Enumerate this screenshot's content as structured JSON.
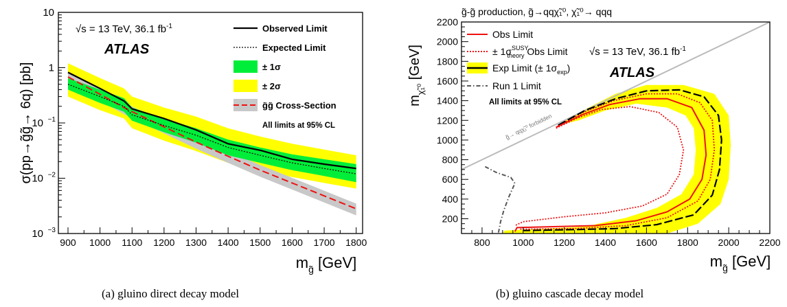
{
  "panel_a": {
    "caption": "(a) gluino direct decay model",
    "energy_label": "√s = 13 TeV, 36.1 fb",
    "energy_sup": "-1",
    "experiment": "ATLAS",
    "all_limits": "All limits at 95% CL",
    "legend": {
      "observed": "Observed Limit",
      "expected": "Expected Limit",
      "one_sigma": "± 1σ",
      "two_sigma": "± 2σ",
      "xsec": "g̃g̃ Cross-Section"
    }
  },
  "panel_b": {
    "caption": "(b) gluino cascade decay model",
    "title": "g̃-g̃ production, g̃→qqχ̃₁⁰, χ̃₁⁰→ qqq",
    "energy_label": "√s = 13 TeV, 36.1 fb",
    "energy_sup": "-1",
    "experiment": "ATLAS",
    "all_limits": "All limits at 95% CL",
    "forbidden": "g̃→ qqχ̃₁⁰ forbidden",
    "legend": {
      "obs": "Obs Limit",
      "theory_prefix": "± 1σ",
      "theory_sup": "SUSY",
      "theory_sub": "theory",
      "theory_suffix": " Obs Limit",
      "exp": "Exp Limit (± 1σ",
      "exp_sub": "exp",
      "exp_close": ")",
      "run1": "Run 1 Limit"
    }
  },
  "colors": {
    "green_band": "#00ee3a",
    "yellow_band": "#ffff00",
    "red": "#ee1111",
    "grey_band": "#c8c8c8",
    "diagonal": "#bbbbbb",
    "run1": "#555555"
  },
  "chart_data": [
    {
      "type": "line",
      "ylog": true,
      "xlabel": "m_g̃ [GeV]",
      "ylabel": "σ(pp→g̃g̃→ 6q) [pb]",
      "xlim": [
        870,
        1820
      ],
      "ylim": [
        0.001,
        10
      ],
      "xticks": [
        900,
        1000,
        1100,
        1200,
        1300,
        1400,
        1500,
        1600,
        1700,
        1800
      ],
      "yticks": [
        {
          "v": 0.001,
          "base": "10",
          "exp": "−3"
        },
        {
          "v": 0.01,
          "base": "10",
          "exp": "−2"
        },
        {
          "v": 0.1,
          "base": "10",
          "exp": "−1"
        },
        {
          "v": 1,
          "base": "1",
          "exp": ""
        },
        {
          "v": 10,
          "base": "10",
          "exp": ""
        }
      ],
      "x": [
        900,
        1000,
        1075,
        1100,
        1200,
        1300,
        1400,
        1500,
        1600,
        1700,
        1800
      ],
      "series": [
        {
          "name": "Observed Limit",
          "values": [
            0.82,
            0.42,
            0.25,
            0.18,
            0.12,
            0.075,
            0.042,
            0.032,
            0.022,
            0.018,
            0.015
          ]
        },
        {
          "name": "Expected Limit",
          "values": [
            0.5,
            0.3,
            0.2,
            0.14,
            0.09,
            0.06,
            0.036,
            0.026,
            0.019,
            0.015,
            0.012
          ]
        },
        {
          "name": "± 1σ",
          "lower": [
            0.4,
            0.23,
            0.16,
            0.11,
            0.068,
            0.044,
            0.026,
            0.019,
            0.014,
            0.011,
            0.0085
          ],
          "upper": [
            0.65,
            0.4,
            0.28,
            0.19,
            0.12,
            0.08,
            0.05,
            0.036,
            0.027,
            0.022,
            0.018
          ]
        },
        {
          "name": "± 2σ",
          "lower": [
            0.3,
            0.17,
            0.12,
            0.08,
            0.048,
            0.031,
            0.019,
            0.014,
            0.0105,
            0.0082,
            0.0065
          ],
          "upper": [
            1.2,
            0.65,
            0.42,
            0.3,
            0.19,
            0.13,
            0.08,
            0.057,
            0.042,
            0.033,
            0.026
          ]
        },
        {
          "name": "g̃g̃ Cross-Section",
          "values": [
            0.68,
            0.33,
            0.19,
            0.16,
            0.085,
            0.045,
            0.025,
            0.014,
            0.0082,
            0.0048,
            0.0028
          ],
          "band_frac": 0.24
        }
      ]
    },
    {
      "type": "line",
      "xlabel": "m_g̃ [GeV]",
      "ylabel": "m_χ̃₁⁰ [GeV]",
      "xlim": [
        700,
        2200
      ],
      "ylim": [
        50,
        2200
      ],
      "xticks": [
        800,
        1000,
        1200,
        1400,
        1600,
        1800,
        2000,
        2200
      ],
      "yticks": [
        200,
        400,
        600,
        800,
        1000,
        1200,
        1400,
        1600,
        1800,
        2000,
        2200
      ],
      "diagonal": [
        [
          700,
          700
        ],
        [
          2200,
          2200
        ]
      ],
      "series": [
        {
          "name": "Exp Limit ± 1σ band outer",
          "points": [
            [
              1170,
              1150
            ],
            [
              1300,
              1310
            ],
            [
              1450,
              1470
            ],
            [
              1600,
              1560
            ],
            [
              1780,
              1560
            ],
            [
              1930,
              1470
            ],
            [
              2000,
              1250
            ],
            [
              2010,
              950
            ],
            [
              2000,
              600
            ],
            [
              1960,
              350
            ],
            [
              1850,
              150
            ],
            [
              1700,
              50
            ],
            [
              900,
              50
            ],
            [
              910,
              80
            ],
            [
              1300,
              120
            ],
            [
              1500,
              210
            ],
            [
              1650,
              310
            ],
            [
              1770,
              450
            ],
            [
              1830,
              650
            ],
            [
              1840,
              900
            ],
            [
              1830,
              1120
            ],
            [
              1790,
              1250
            ],
            [
              1700,
              1330
            ],
            [
              1550,
              1370
            ],
            [
              1400,
              1300
            ],
            [
              1270,
              1200
            ],
            [
              1170,
              1150
            ]
          ]
        },
        {
          "name": "Exp Limit (± 1σexp)",
          "points": [
            [
              1170,
              1150
            ],
            [
              1300,
              1300
            ],
            [
              1450,
              1420
            ],
            [
              1600,
              1500
            ],
            [
              1760,
              1510
            ],
            [
              1880,
              1440
            ],
            [
              1950,
              1250
            ],
            [
              1965,
              1000
            ],
            [
              1955,
              700
            ],
            [
              1920,
              440
            ],
            [
              1830,
              240
            ],
            [
              1650,
              140
            ],
            [
              1450,
              100
            ],
            [
              1250,
              90
            ],
            [
              1000,
              80
            ]
          ]
        },
        {
          "name": "Obs Limit",
          "points": [
            [
              1160,
              1130
            ],
            [
              1290,
              1260
            ],
            [
              1420,
              1360
            ],
            [
              1570,
              1420
            ],
            [
              1700,
              1420
            ],
            [
              1820,
              1330
            ],
            [
              1880,
              1100
            ],
            [
              1890,
              850
            ],
            [
              1870,
              600
            ],
            [
              1810,
              400
            ],
            [
              1700,
              270
            ],
            [
              1550,
              180
            ],
            [
              1350,
              130
            ],
            [
              1150,
              120
            ],
            [
              970,
              110
            ],
            [
              960,
              70
            ]
          ]
        },
        {
          "name": "± 1σtheory SUSY Obs Limit (upper)",
          "points": [
            [
              1170,
              1150
            ],
            [
              1300,
              1290
            ],
            [
              1440,
              1400
            ],
            [
              1600,
              1470
            ],
            [
              1750,
              1470
            ],
            [
              1860,
              1380
            ],
            [
              1920,
              1200
            ],
            [
              1930,
              900
            ],
            [
              1910,
              600
            ],
            [
              1850,
              380
            ],
            [
              1700,
              210
            ],
            [
              1500,
              130
            ],
            [
              1250,
              100
            ],
            [
              980,
              95
            ]
          ]
        },
        {
          "name": "± 1σtheory SUSY Obs Limit (lower)",
          "points": [
            [
              1160,
              1120
            ],
            [
              1260,
              1220
            ],
            [
              1380,
              1310
            ],
            [
              1520,
              1340
            ],
            [
              1660,
              1280
            ],
            [
              1750,
              1130
            ],
            [
              1780,
              900
            ],
            [
              1760,
              650
            ],
            [
              1700,
              450
            ],
            [
              1580,
              330
            ],
            [
              1400,
              260
            ],
            [
              1200,
              220
            ],
            [
              1000,
              170
            ],
            [
              960,
              130
            ]
          ]
        },
        {
          "name": "Run 1 Limit",
          "points": [
            [
              815,
              730
            ],
            [
              870,
              670
            ],
            [
              940,
              620
            ],
            [
              960,
              560
            ],
            [
              930,
              420
            ],
            [
              905,
              280
            ],
            [
              890,
              170
            ],
            [
              880,
              60
            ]
          ]
        }
      ]
    }
  ]
}
